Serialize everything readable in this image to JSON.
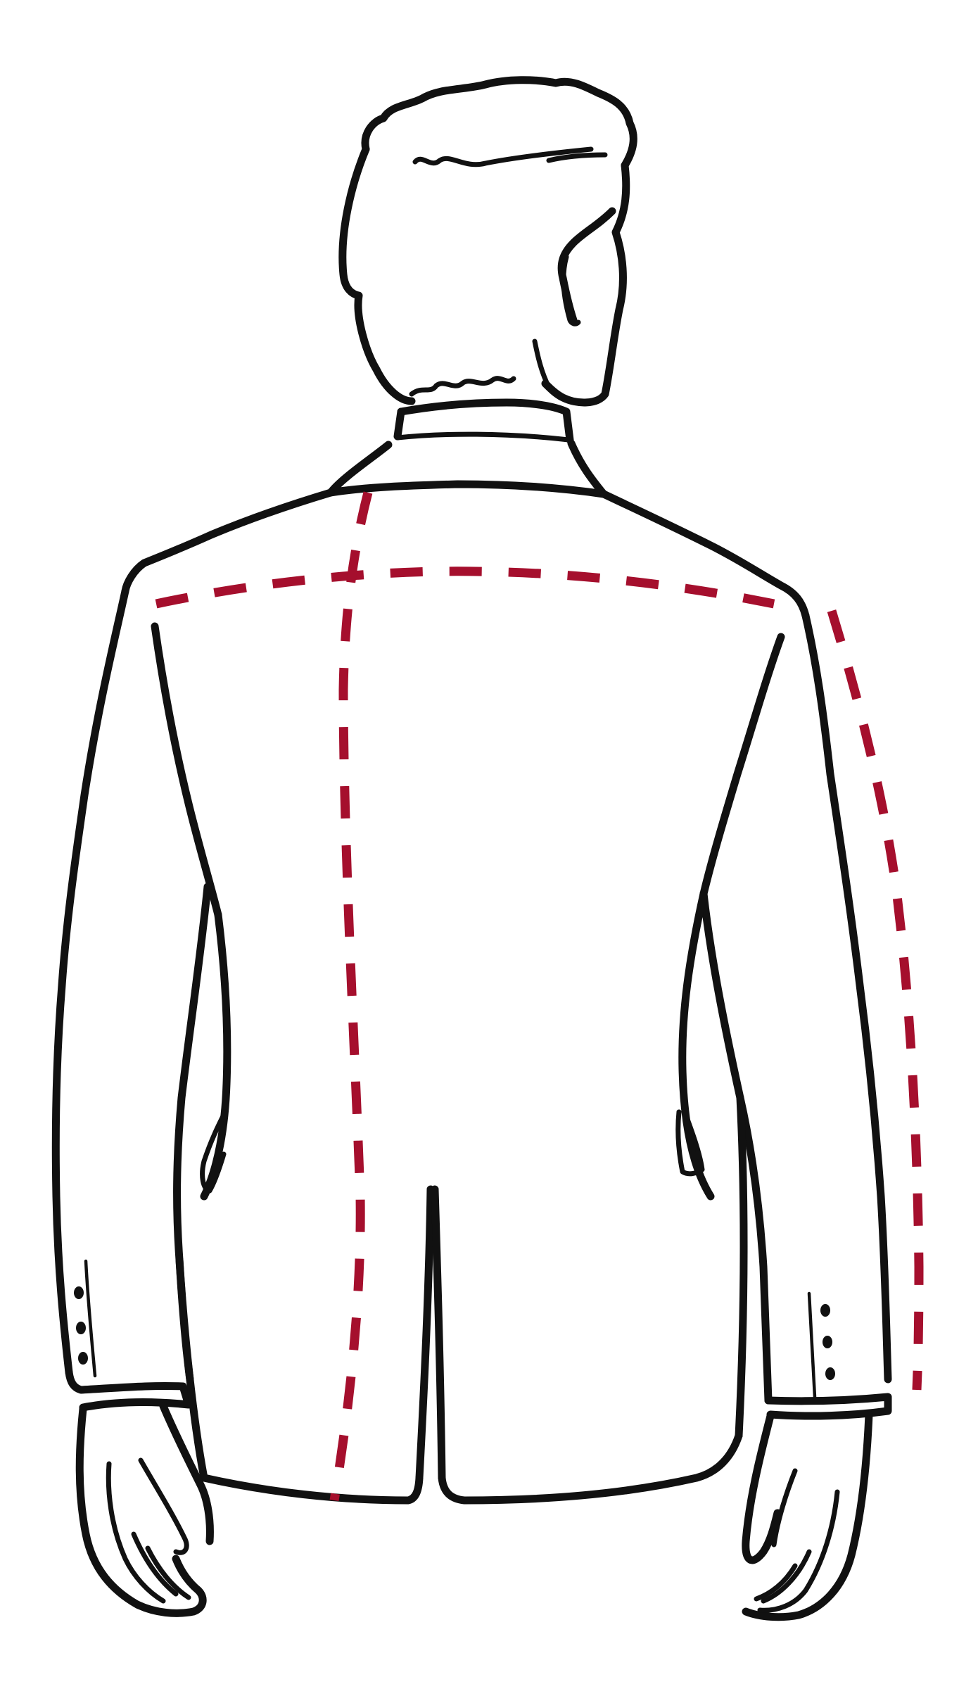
{
  "illustration": {
    "subject": "jacket-back-view",
    "line_color": "#111111",
    "background": "#ffffff"
  },
  "measurements": {
    "color": "#a50f2d",
    "lines": [
      {
        "id": "shoulder-width"
      },
      {
        "id": "back-length"
      },
      {
        "id": "sleeve-length"
      }
    ]
  }
}
